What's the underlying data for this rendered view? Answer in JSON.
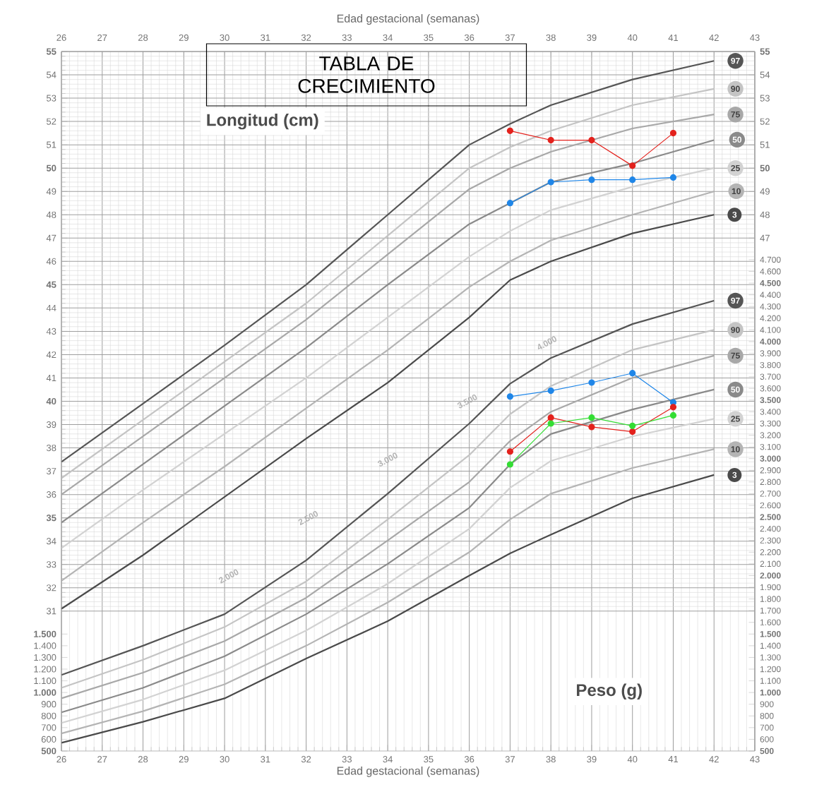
{
  "chart_data": {
    "type": "line",
    "title": "TABLA DE CRECIMIENTO",
    "xlabel": "Edad gestacional (semanas)",
    "x2label": "Edad gestacional (semanas)",
    "ylabel": "Longitud (cm)",
    "y2label": "Peso (g)",
    "xlim": [
      26,
      43
    ],
    "xticks": [
      26,
      27,
      28,
      29,
      30,
      31,
      32,
      33,
      34,
      35,
      36,
      37,
      38,
      39,
      40,
      41,
      42,
      43
    ],
    "x2lim": [
      26,
      43
    ],
    "x2ticks": [
      26,
      27,
      28,
      29,
      30,
      31,
      32,
      33,
      34,
      35,
      36,
      37,
      38,
      39,
      40,
      41,
      42,
      43
    ],
    "ylim": [
      25,
      55
    ],
    "yticks": [
      31,
      32,
      33,
      34,
      35,
      36,
      37,
      38,
      39,
      40,
      41,
      42,
      43,
      44,
      45,
      46,
      47,
      48,
      49,
      50,
      51,
      52,
      53,
      54,
      55
    ],
    "y3lim": [
      25,
      55
    ],
    "y3ticks": [
      47,
      48,
      49,
      50,
      51,
      52,
      53,
      54,
      55
    ],
    "y2lim": [
      500,
      6480
    ],
    "y2ticks": [
      {
        "value": 500,
        "label": "500"
      },
      {
        "value": 600,
        "label": "600"
      },
      {
        "value": 700,
        "label": "700"
      },
      {
        "value": 800,
        "label": "800"
      },
      {
        "value": 900,
        "label": "900"
      },
      {
        "value": 1000,
        "label": "1.000"
      },
      {
        "value": 1100,
        "label": "1.100"
      },
      {
        "value": 1200,
        "label": "1.200"
      },
      {
        "value": 1300,
        "label": "1.300"
      },
      {
        "value": 1400,
        "label": "1.400"
      },
      {
        "value": 1500,
        "label": "1.500"
      },
      {
        "value": 1600,
        "label": "1.600"
      },
      {
        "value": 1700,
        "label": "1.700"
      },
      {
        "value": 1800,
        "label": "1.800"
      },
      {
        "value": 1900,
        "label": "1.900"
      },
      {
        "value": 2000,
        "label": "2.000"
      },
      {
        "value": 2100,
        "label": "2.100"
      },
      {
        "value": 2200,
        "label": "2.200"
      },
      {
        "value": 2300,
        "label": "2.300"
      },
      {
        "value": 2400,
        "label": "2.400"
      },
      {
        "value": 2500,
        "label": "2.500"
      },
      {
        "value": 2600,
        "label": "2.600"
      },
      {
        "value": 2700,
        "label": "2.700"
      },
      {
        "value": 2800,
        "label": "2.800"
      },
      {
        "value": 2900,
        "label": "2.900"
      },
      {
        "value": 3000,
        "label": "3.000"
      },
      {
        "value": 3100,
        "label": "3.100"
      },
      {
        "value": 3200,
        "label": "3.200"
      },
      {
        "value": 3300,
        "label": "3.300"
      },
      {
        "value": 3400,
        "label": "3.400"
      },
      {
        "value": 3500,
        "label": "3.500"
      },
      {
        "value": 3600,
        "label": "3.600"
      },
      {
        "value": 3700,
        "label": "3.700"
      },
      {
        "value": 3800,
        "label": "3.800"
      },
      {
        "value": 3900,
        "label": "3.900"
      },
      {
        "value": 4000,
        "label": "4.000"
      },
      {
        "value": 4100,
        "label": "4.100"
      },
      {
        "value": 4200,
        "label": "4.200"
      },
      {
        "value": 4300,
        "label": "4.300"
      },
      {
        "value": 4400,
        "label": "4.400"
      },
      {
        "value": 4500,
        "label": "4.500"
      },
      {
        "value": 4600,
        "label": "4.600"
      },
      {
        "value": 4700,
        "label": "4.700"
      }
    ],
    "grid": true,
    "series": [
      {
        "name": "97",
        "color": "#555555",
        "marker": "none",
        "x": [
          26,
          28,
          30,
          32,
          34,
          36,
          37,
          38,
          40,
          42
        ],
        "values": [
          37.4,
          39.9,
          42.4,
          45.0,
          48.0,
          51.0,
          51.9,
          52.7,
          53.8,
          54.6
        ]
      },
      {
        "name": "90",
        "color": "#c4c4c4",
        "marker": "none",
        "x": [
          26,
          28,
          30,
          32,
          34,
          36,
          37,
          38,
          40,
          42
        ],
        "values": [
          36.7,
          39.2,
          41.7,
          44.2,
          47.1,
          50.0,
          50.9,
          51.6,
          52.7,
          53.4
        ]
      },
      {
        "name": "75",
        "color": "#a8a8a8",
        "marker": "none",
        "x": [
          26,
          28,
          30,
          32,
          34,
          36,
          37,
          38,
          40,
          42
        ],
        "values": [
          36.0,
          38.5,
          41.0,
          43.5,
          46.3,
          49.1,
          50.0,
          50.7,
          51.7,
          52.3
        ]
      },
      {
        "name": "50",
        "color": "#8a8a8a",
        "marker": "none",
        "x": [
          26,
          28,
          30,
          32,
          34,
          36,
          37,
          38,
          40,
          42
        ],
        "values": [
          34.8,
          37.3,
          39.8,
          42.3,
          45.0,
          47.6,
          48.5,
          49.4,
          50.2,
          51.2
        ]
      },
      {
        "name": "25",
        "color": "#d2d2d2",
        "marker": "none",
        "x": [
          26,
          28,
          30,
          32,
          34,
          36,
          37,
          38,
          40,
          42
        ],
        "values": [
          33.7,
          36.2,
          38.6,
          41.0,
          43.6,
          46.2,
          47.3,
          48.2,
          49.2,
          50.0
        ]
      },
      {
        "name": "10",
        "color": "#b4b4b4",
        "marker": "none",
        "x": [
          26,
          28,
          30,
          32,
          34,
          36,
          37,
          38,
          40,
          42
        ],
        "values": [
          32.3,
          34.8,
          37.2,
          39.7,
          42.2,
          44.9,
          46.0,
          46.9,
          48.0,
          49.0
        ]
      },
      {
        "name": "3",
        "color": "#4a4a4a",
        "marker": "none",
        "x": [
          26,
          28,
          30,
          32,
          34,
          36,
          37,
          38,
          40,
          42
        ],
        "values": [
          31.1,
          33.4,
          35.9,
          38.4,
          40.8,
          43.6,
          45.2,
          46.0,
          47.2,
          48.0
        ]
      },
      {
        "name": "97",
        "color": "#555555",
        "marker": "none",
        "axis": "y2",
        "x": [
          26,
          28,
          30,
          32,
          34,
          36,
          37,
          38,
          40,
          42
        ],
        "values": [
          1150,
          1400,
          1670,
          2130,
          2700,
          3300,
          3640,
          3860,
          4150,
          4350
        ]
      },
      {
        "name": "90",
        "color": "#c4c4c4",
        "marker": "none",
        "axis": "y2",
        "x": [
          26,
          28,
          30,
          32,
          34,
          36,
          37,
          38,
          40,
          42
        ],
        "values": [
          1040,
          1280,
          1560,
          1950,
          2480,
          3030,
          3380,
          3620,
          3930,
          4100
        ]
      },
      {
        "name": "75",
        "color": "#a8a8a8",
        "marker": "none",
        "axis": "y2",
        "x": [
          26,
          28,
          30,
          32,
          34,
          36,
          37,
          38,
          40,
          42
        ],
        "values": [
          950,
          1170,
          1440,
          1810,
          2300,
          2800,
          3150,
          3400,
          3690,
          3880
        ]
      },
      {
        "name": "50",
        "color": "#8a8a8a",
        "marker": "none",
        "axis": "y2",
        "x": [
          26,
          28,
          30,
          32,
          34,
          36,
          37,
          38,
          40,
          42
        ],
        "values": [
          830,
          1040,
          1310,
          1670,
          2100,
          2580,
          2950,
          3210,
          3420,
          3590
        ]
      },
      {
        "name": "25",
        "color": "#d2d2d2",
        "marker": "none",
        "axis": "y2",
        "x": [
          26,
          28,
          30,
          32,
          34,
          36,
          37,
          38,
          40,
          42
        ],
        "values": [
          740,
          940,
          1190,
          1530,
          1930,
          2400,
          2750,
          2980,
          3190,
          3340
        ]
      },
      {
        "name": "10",
        "color": "#b4b4b4",
        "marker": "none",
        "axis": "y2",
        "x": [
          26,
          28,
          30,
          32,
          34,
          36,
          37,
          38,
          40,
          42
        ],
        "values": [
          650,
          840,
          1070,
          1400,
          1770,
          2200,
          2480,
          2700,
          2920,
          3080
        ]
      },
      {
        "name": "3",
        "color": "#4a4a4a",
        "marker": "none",
        "axis": "y2",
        "x": [
          26,
          28,
          30,
          32,
          34,
          36,
          37,
          38,
          40,
          42
        ],
        "values": [
          570,
          750,
          950,
          1290,
          1610,
          2000,
          2190,
          2350,
          2660,
          2860
        ]
      },
      {
        "color": "#e3211c",
        "marker": "circle",
        "x": [
          37,
          38,
          39,
          40,
          41
        ],
        "values": [
          51.6,
          51.2,
          51.2,
          50.1,
          51.5
        ]
      },
      {
        "color": "#1f86e8",
        "marker": "circle",
        "x": [
          37,
          38,
          39,
          40,
          41
        ],
        "values": [
          48.5,
          49.4,
          49.5,
          49.5,
          49.6
        ]
      },
      {
        "color": "#1f86e8",
        "marker": "circle",
        "axis": "y2",
        "x": [
          37,
          38,
          39,
          40,
          41
        ],
        "values": [
          3530,
          3580,
          3650,
          3730,
          3480
        ]
      },
      {
        "color": "#e3211c",
        "marker": "circle",
        "axis": "y2",
        "x": [
          37,
          38,
          39,
          40,
          41
        ],
        "values": [
          3060,
          3350,
          3270,
          3230,
          3440
        ]
      },
      {
        "color": "#33dd33",
        "marker": "circle",
        "axis": "y2",
        "x": [
          37,
          38,
          39,
          40,
          41
        ],
        "values": [
          2950,
          3300,
          3350,
          3280,
          3370
        ]
      }
    ],
    "annotations": [
      "2.000",
      "2.500",
      "3.000",
      "3.500",
      "4.000"
    ]
  }
}
